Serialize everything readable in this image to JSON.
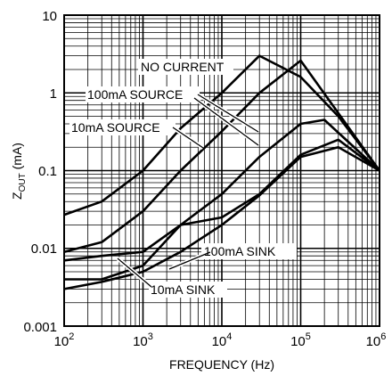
{
  "chart_data": {
    "type": "line",
    "xlabel": "FREQUENCY (Hz)",
    "ylabel_main": "Z",
    "ylabel_sub": "OUT",
    "ylabel_unit": " (mA)",
    "x_scale": "log",
    "y_scale": "log",
    "xlim": [
      100,
      1000000
    ],
    "ylim": [
      0.001,
      10
    ],
    "grid": true,
    "x_ticks": [
      {
        "value": 100,
        "base": "10",
        "exp": "2"
      },
      {
        "value": 1000,
        "base": "10",
        "exp": "3"
      },
      {
        "value": 10000,
        "base": "10",
        "exp": "4"
      },
      {
        "value": 100000,
        "base": "10",
        "exp": "5"
      },
      {
        "value": 1000000,
        "base": "10",
        "exp": "6"
      }
    ],
    "y_ticks": [
      {
        "value": 10,
        "label": "10"
      },
      {
        "value": 1,
        "label": "1"
      },
      {
        "value": 0.1,
        "label": "0.1"
      },
      {
        "value": 0.01,
        "label": "0.01"
      },
      {
        "value": 0.001,
        "label": "0.001"
      }
    ],
    "series": [
      {
        "name": "NO CURRENT",
        "x": [
          100,
          300,
          1000,
          3000,
          10000,
          30000,
          100000,
          300000,
          1000000
        ],
        "y": [
          0.027,
          0.04,
          0.1,
          0.35,
          1.0,
          3.0,
          1.6,
          0.5,
          0.1
        ]
      },
      {
        "name": "100mA SOURCE",
        "x": [
          100,
          300,
          1000,
          3000,
          10000,
          30000,
          100000,
          300000,
          1000000
        ],
        "y": [
          0.009,
          0.012,
          0.03,
          0.1,
          0.32,
          1.0,
          2.6,
          0.55,
          0.1
        ]
      },
      {
        "name": "10mA SOURCE",
        "x": [
          100,
          300,
          1000,
          3000,
          10000,
          30000,
          100000,
          200000,
          1000000
        ],
        "y": [
          0.007,
          0.008,
          0.009,
          0.02,
          0.05,
          0.15,
          0.4,
          0.45,
          0.1
        ]
      },
      {
        "name": "100mA SINK",
        "x": [
          100,
          300,
          1000,
          3000,
          10000,
          30000,
          100000,
          300000,
          1000000
        ],
        "y": [
          0.004,
          0.004,
          0.006,
          0.02,
          0.025,
          0.05,
          0.16,
          0.25,
          0.1
        ]
      },
      {
        "name": "10mA SINK",
        "x": [
          100,
          300,
          1000,
          3000,
          10000,
          30000,
          100000,
          300000,
          1000000
        ],
        "y": [
          0.003,
          0.0037,
          0.005,
          0.009,
          0.02,
          0.048,
          0.15,
          0.2,
          0.1
        ]
      }
    ],
    "annotations": [
      {
        "text": "NO CURRENT",
        "series": "NO CURRENT"
      },
      {
        "text": "100mA SOURCE",
        "series": "100mA SOURCE"
      },
      {
        "text": "10mA SOURCE",
        "series": "10mA SOURCE"
      },
      {
        "text": "100mA SINK",
        "series": "100mA SINK"
      },
      {
        "text": "10mA SINK",
        "series": "10mA SINK"
      }
    ],
    "colors": {
      "line": "#000000",
      "grid": "#000000",
      "background": "#ffffff"
    }
  }
}
